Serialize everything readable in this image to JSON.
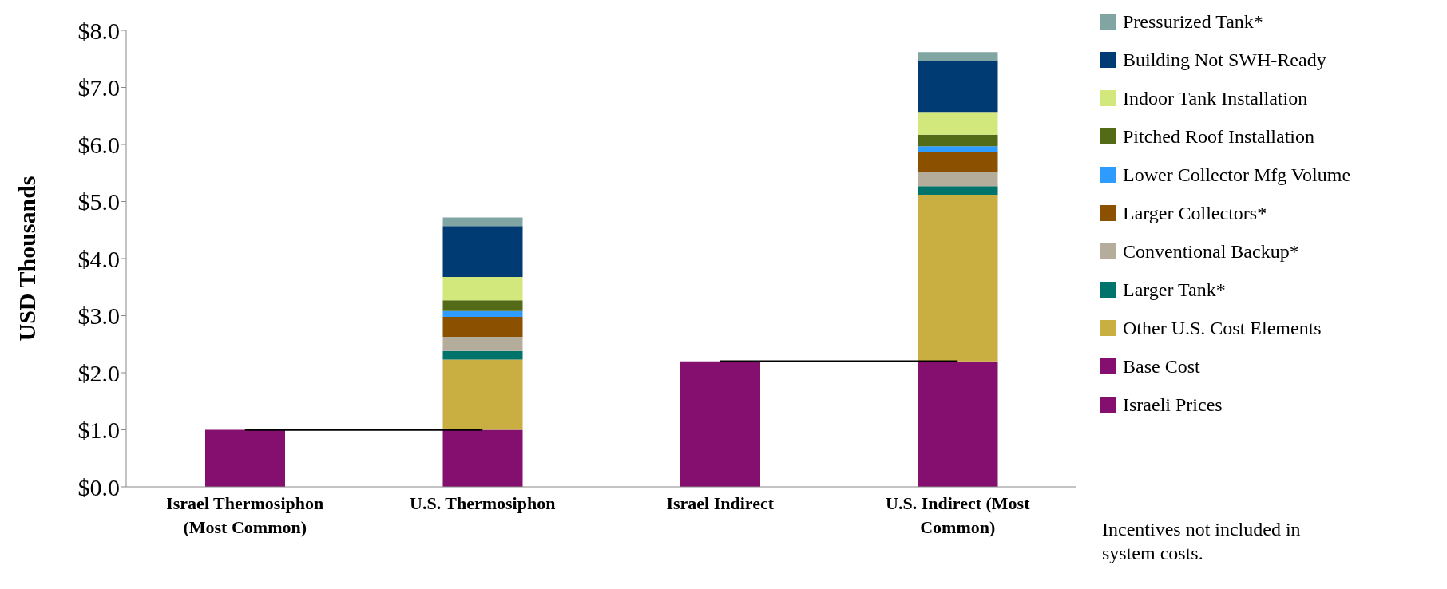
{
  "chart_data": {
    "type": "bar",
    "stacked": true,
    "ylabel": "USD Thousands",
    "categories": [
      "Israel Thermosiphon (Most Common)",
      "U.S. Thermosiphon",
      "Israel Indirect",
      "U.S. Indirect (Most Common)"
    ],
    "ylim": [
      0,
      8
    ],
    "yticks": [
      {
        "value": 0,
        "label": "$0.0"
      },
      {
        "value": 1,
        "label": "$1.0"
      },
      {
        "value": 2,
        "label": "$2.0"
      },
      {
        "value": 3,
        "label": "$3.0"
      },
      {
        "value": 4,
        "label": "$4.0"
      },
      {
        "value": 5,
        "label": "$5.0"
      },
      {
        "value": 6,
        "label": "$6.0"
      },
      {
        "value": 7,
        "label": "$7.0"
      },
      {
        "value": 8,
        "label": "$8.0"
      }
    ],
    "legend": "right",
    "marker": "none",
    "series": [
      {
        "name": "Israeli Prices",
        "color": "#840f6e",
        "values": [
          1.0,
          null,
          2.2,
          null
        ]
      },
      {
        "name": "Base Cost",
        "color": "#840f6e",
        "values": [
          null,
          1.0,
          null,
          2.2
        ]
      },
      {
        "name": "Other U.S. Cost Elements",
        "color": "#c9ae41",
        "values": [
          null,
          1.23,
          null,
          2.92
        ]
      },
      {
        "name": "Larger Tank*",
        "color": "#00736a",
        "values": [
          null,
          0.15,
          null,
          0.15
        ]
      },
      {
        "name": "Conventional Backup*",
        "color": "#b5ad9c",
        "values": [
          null,
          0.25,
          null,
          0.25
        ]
      },
      {
        "name": "Larger Collectors*",
        "color": "#8b5000",
        "values": [
          null,
          0.35,
          null,
          0.35
        ]
      },
      {
        "name": "Lower Collector Mfg Volume",
        "color": "#2e9bff",
        "values": [
          null,
          0.1,
          null,
          0.1
        ]
      },
      {
        "name": "Pitched Roof Installation",
        "color": "#536a16",
        "values": [
          null,
          0.19,
          null,
          0.2
        ]
      },
      {
        "name": "Indoor Tank Installation",
        "color": "#d2e87c",
        "values": [
          null,
          0.41,
          null,
          0.4
        ]
      },
      {
        "name": "Building Not SWH-Ready",
        "color": "#003c73",
        "values": [
          null,
          0.89,
          null,
          0.9
        ]
      },
      {
        "name": "Pressurized Tank*",
        "color": "#81a5a3",
        "values": [
          null,
          0.15,
          null,
          0.15
        ]
      },
      {
        "type": "line",
        "color": "#000000",
        "values": [
          1.0,
          1.0,
          null,
          null
        ]
      },
      {
        "type": "line",
        "color": "#000000",
        "values": [
          null,
          null,
          2.2,
          2.2
        ]
      }
    ],
    "annotations": [
      "Incentives not included in system costs."
    ]
  }
}
